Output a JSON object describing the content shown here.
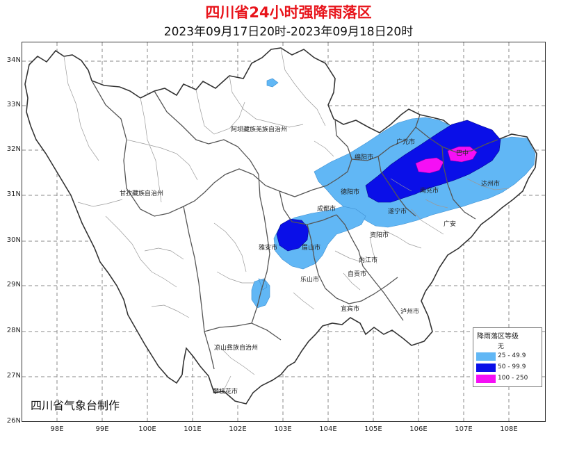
{
  "title": "四川省24小时强降雨落区",
  "subtitle": "2023年09月17日20时-2023年09月18日20时",
  "credit": "四川省气象台制作",
  "y_axis_labels": [
    "34N",
    "33N",
    "32N",
    "31N",
    "30N",
    "29N",
    "28N",
    "27N",
    "26N"
  ],
  "x_axis_labels": [
    "98E",
    "99E",
    "100E",
    "101E",
    "102E",
    "103E",
    "104E",
    "105E",
    "106E",
    "107E",
    "108E"
  ],
  "regions": {
    "aba": "阿坝藏族羌族自治州",
    "ganzi": "甘孜藏族自治州",
    "liangshan": "凉山彝族自治州",
    "guangyuan": "广元市",
    "mianyang": "绵阳市",
    "bazhong": "巴中",
    "deyang": "德阳市",
    "nanchong": "南充市",
    "dazhou": "达州市",
    "chengdu": "成都市",
    "suining": "遂宁市",
    "guangan": "广安",
    "ziyang": "资阳市",
    "yaan": "雅安市",
    "meishan": "眉山市",
    "neijiang": "内江市",
    "leshan": "乐山市",
    "zigong": "自贡市",
    "yibin": "宜宾市",
    "luzhou": "泸州市",
    "panzhihua": "攀枝花市"
  },
  "legend": {
    "title": "降雨落区等级",
    "items": [
      {
        "label": "无",
        "color": "#ffffff"
      },
      {
        "label": "25 - 49.9",
        "color": "#61b7f5"
      },
      {
        "label": "50 - 99.9",
        "color": "#0a0fe8"
      },
      {
        "label": "100 - 250",
        "color": "#f50ff5"
      }
    ]
  }
}
